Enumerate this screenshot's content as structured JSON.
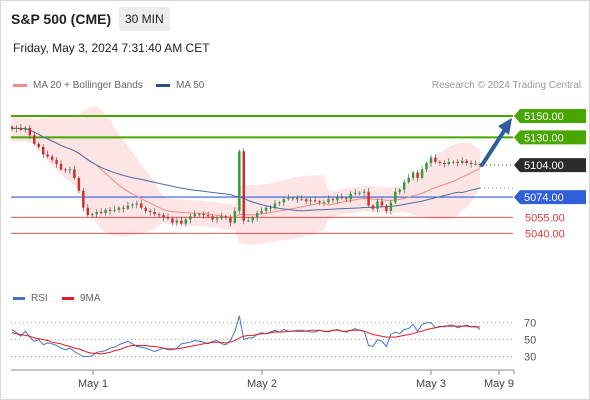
{
  "header": {
    "symbol": "S&P 500 (CME)",
    "timeframe": "30 MIN"
  },
  "timestamp": "Friday, May 3, 2024 7:31:40 AM CET",
  "legend": {
    "ma20_label": "MA 20 + Bollinger Bands",
    "ma50_label": "MA 50",
    "credit": "Research © 2024 Trading Central"
  },
  "rsi_legend": {
    "rsi_label": "RSI",
    "ma_label": "9MA"
  },
  "colors": {
    "resistance": "#48a600",
    "support": "#2f5fd9",
    "pivot_minor": "#e23a3a",
    "current": "#2b2b2b",
    "arrow": "#2d5d9e",
    "ma20": "#f28b82",
    "ma50": "#4a6baa",
    "band": "#fcdede",
    "rsi": "#4472c4",
    "rsi_ma": "#e01e1e",
    "bull": "#2e9e3a",
    "bear": "#d22b2b"
  },
  "chart_data": [
    {
      "type": "candlestick",
      "x_ticks": [
        "May 1",
        "May 2",
        "May 3",
        "May 9"
      ],
      "ylim": [
        5015,
        5165
      ],
      "levels": [
        {
          "value": 5150,
          "label": "5150.00",
          "kind": "resistance"
        },
        {
          "value": 5130,
          "label": "5130.00",
          "kind": "resistance"
        },
        {
          "value": 5104,
          "label": "5104.00",
          "kind": "current"
        },
        {
          "value": 5074,
          "label": "5074.00",
          "kind": "support"
        },
        {
          "value": 5055,
          "label": "5055.00",
          "kind": "minor"
        },
        {
          "value": 5040,
          "label": "5040.00",
          "kind": "minor"
        }
      ],
      "close": [
        5138,
        5139,
        5137,
        5139,
        5132,
        5124,
        5121,
        5114,
        5112,
        5109,
        5105,
        5100,
        5099,
        5100,
        5092,
        5080,
        5064,
        5057,
        5058,
        5060,
        5059,
        5062,
        5061,
        5062,
        5064,
        5063,
        5066,
        5067,
        5068,
        5064,
        5061,
        5060,
        5058,
        5057,
        5055,
        5054,
        5050,
        5052,
        5049,
        5053,
        5056,
        5058,
        5058,
        5057,
        5056,
        5053,
        5054,
        5056,
        5055,
        5050,
        5061,
        5117,
        5052,
        5052,
        5055,
        5059,
        5061,
        5064,
        5064,
        5068,
        5069,
        5072,
        5073,
        5073,
        5072,
        5072,
        5070,
        5071,
        5070,
        5069,
        5069,
        5072,
        5071,
        5074,
        5073,
        5072,
        5077,
        5078,
        5078,
        5079,
        5066,
        5063,
        5070,
        5066,
        5061,
        5069,
        5079,
        5081,
        5088,
        5092,
        5097,
        5092,
        5100,
        5106,
        5111,
        5107,
        5106,
        5105,
        5107,
        5107,
        5106,
        5108,
        5106,
        5105,
        5105,
        5104
      ]
    },
    {
      "type": "line",
      "title": "RSI",
      "ylim": [
        20,
        85
      ],
      "y_ticks": [
        70,
        50,
        30
      ],
      "series": [
        {
          "name": "RSI",
          "values": [
            62,
            58,
            54,
            60,
            53,
            48,
            50,
            44,
            46,
            45,
            43,
            40,
            38,
            40,
            36,
            33,
            30,
            30,
            31,
            35,
            36,
            37,
            40,
            41,
            44,
            46,
            48,
            45,
            42,
            41,
            40,
            38,
            36,
            38,
            40,
            38,
            38,
            40,
            45,
            46,
            47,
            49,
            48,
            47,
            45,
            48,
            49,
            45,
            44,
            49,
            60,
            78,
            50,
            52,
            52,
            56,
            58,
            57,
            59,
            61,
            59,
            62,
            60,
            60,
            61,
            61,
            60,
            59,
            59,
            61,
            60,
            59,
            61,
            62,
            60,
            59,
            61,
            63,
            61,
            60,
            43,
            42,
            50,
            48,
            42,
            56,
            59,
            57,
            62,
            63,
            68,
            60,
            68,
            70,
            70,
            64,
            66,
            65,
            67,
            67,
            64,
            66,
            67,
            65,
            66,
            62
          ]
        },
        {
          "name": "9MA",
          "values": [
            58,
            57,
            56,
            55,
            54,
            52,
            51,
            50,
            49,
            47,
            46,
            45,
            43,
            42,
            40,
            39,
            37,
            35,
            34,
            34,
            33,
            34,
            35,
            37,
            38,
            40,
            42,
            43,
            43,
            43,
            43,
            42,
            42,
            41,
            40,
            39,
            39,
            39,
            40,
            41,
            42,
            43,
            44,
            45,
            46,
            47,
            47,
            47,
            46,
            47,
            49,
            52,
            54,
            55,
            55,
            56,
            57,
            57,
            58,
            59,
            59,
            59,
            60,
            60,
            60,
            60,
            60,
            61,
            61,
            61,
            60,
            60,
            61,
            61,
            60,
            60,
            61,
            61,
            61,
            60,
            58,
            56,
            55,
            54,
            53,
            53,
            53,
            54,
            55,
            56,
            57,
            59,
            60,
            62,
            63,
            64,
            65,
            66,
            66,
            66,
            66,
            66,
            66,
            65,
            65,
            65
          ]
        }
      ]
    }
  ]
}
